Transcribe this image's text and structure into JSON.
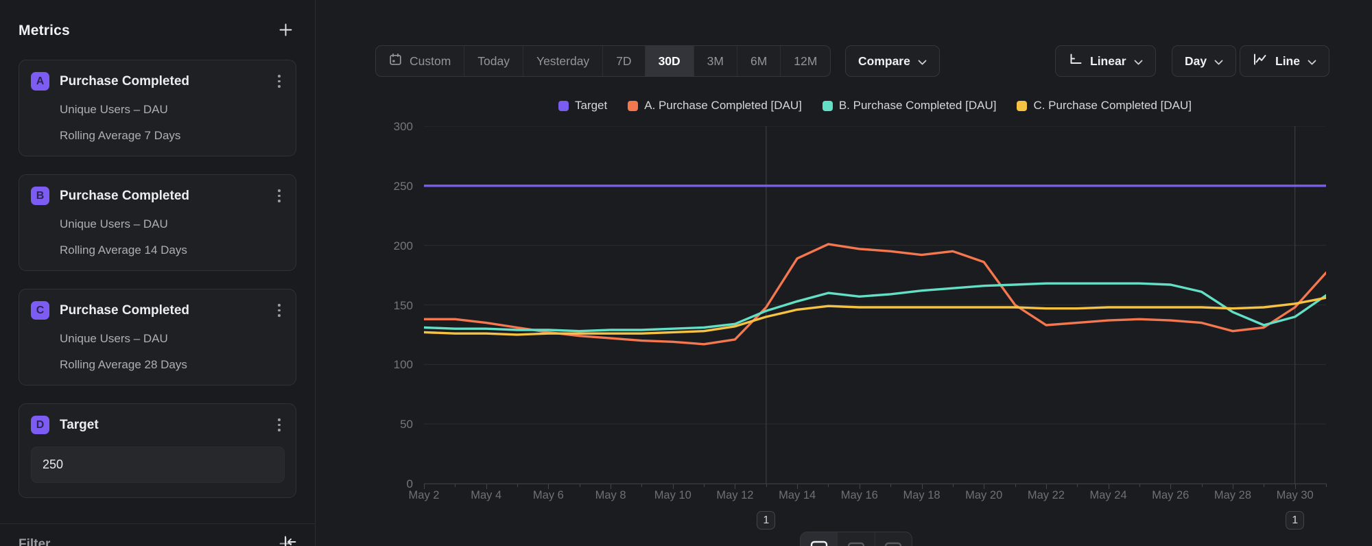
{
  "sidebar": {
    "title": "Metrics",
    "metrics": [
      {
        "badge": "A",
        "title": "Purchase Completed",
        "measure": "Unique Users – DAU",
        "transform": "Rolling Average 7 Days"
      },
      {
        "badge": "B",
        "title": "Purchase Completed",
        "measure": "Unique Users – DAU",
        "transform": "Rolling Average 14 Days"
      },
      {
        "badge": "C",
        "title": "Purchase Completed",
        "measure": "Unique Users – DAU",
        "transform": "Rolling Average 28 Days"
      }
    ],
    "target": {
      "badge": "D",
      "title": "Target",
      "value": "250"
    },
    "filter": {
      "label": "Filter"
    }
  },
  "toolbar": {
    "ranges": [
      "Custom",
      "Today",
      "Yesterday",
      "7D",
      "30D",
      "3M",
      "6M",
      "12M"
    ],
    "active_range": "30D",
    "compare": {
      "label": "Compare"
    },
    "scale": {
      "label": "Linear"
    },
    "interval": {
      "label": "Day"
    },
    "chart_type": {
      "label": "Line"
    }
  },
  "chart_data": {
    "type": "line",
    "title": "",
    "xlabel": "",
    "ylabel": "",
    "ylim": [
      0,
      300
    ],
    "y_ticks": [
      300,
      250,
      200,
      150,
      100,
      50,
      0
    ],
    "grid": true,
    "legend_position": "top",
    "x": [
      "May 2",
      "May 3",
      "May 4",
      "May 5",
      "May 6",
      "May 7",
      "May 8",
      "May 9",
      "May 10",
      "May 11",
      "May 12",
      "May 13",
      "May 14",
      "May 15",
      "May 16",
      "May 17",
      "May 18",
      "May 19",
      "May 20",
      "May 21",
      "May 22",
      "May 23",
      "May 24",
      "May 25",
      "May 26",
      "May 27",
      "May 28",
      "May 29",
      "May 30",
      "May 31"
    ],
    "x_tick_labels": [
      "May 2",
      "May 4",
      "May 6",
      "May 8",
      "May 10",
      "May 12",
      "May 14",
      "May 16",
      "May 18",
      "May 20",
      "May 22",
      "May 24",
      "May 26",
      "May 28",
      "May 30"
    ],
    "series": [
      {
        "name": "Target",
        "color": "#7a5cf0",
        "values": [
          250,
          250,
          250,
          250,
          250,
          250,
          250,
          250,
          250,
          250,
          250,
          250,
          250,
          250,
          250,
          250,
          250,
          250,
          250,
          250,
          250,
          250,
          250,
          250,
          250,
          250,
          250,
          250,
          250,
          250
        ]
      },
      {
        "name": "A. Purchase Completed [DAU]",
        "color": "#f4774f",
        "values": [
          138,
          138,
          135,
          131,
          127,
          124,
          122,
          120,
          119,
          117,
          121,
          148,
          189,
          201,
          197,
          195,
          192,
          195,
          186,
          150,
          133,
          135,
          137,
          138,
          137,
          135,
          128,
          131,
          148,
          177
        ]
      },
      {
        "name": "B. Purchase Completed [DAU]",
        "color": "#63dfc5",
        "values": [
          131,
          130,
          130,
          129,
          129,
          128,
          129,
          129,
          130,
          131,
          134,
          145,
          153,
          160,
          157,
          159,
          162,
          164,
          166,
          167,
          168,
          168,
          168,
          168,
          167,
          161,
          144,
          133,
          140,
          158
        ]
      },
      {
        "name": "C. Purchase Completed [DAU]",
        "color": "#f6c244",
        "values": [
          127,
          126,
          126,
          125,
          126,
          126,
          126,
          126,
          127,
          128,
          132,
          140,
          146,
          149,
          148,
          148,
          148,
          148,
          148,
          148,
          147,
          147,
          148,
          148,
          148,
          148,
          147,
          148,
          151,
          156
        ]
      }
    ],
    "annotations": [
      {
        "label": "1",
        "x": "May 13"
      },
      {
        "label": "1",
        "x": "May 30"
      }
    ]
  },
  "bottom_toolbar": {
    "icons": [
      "line-chart-view-icon",
      "bar-chart-view-icon",
      "table-view-icon"
    ],
    "active_index": 0
  }
}
